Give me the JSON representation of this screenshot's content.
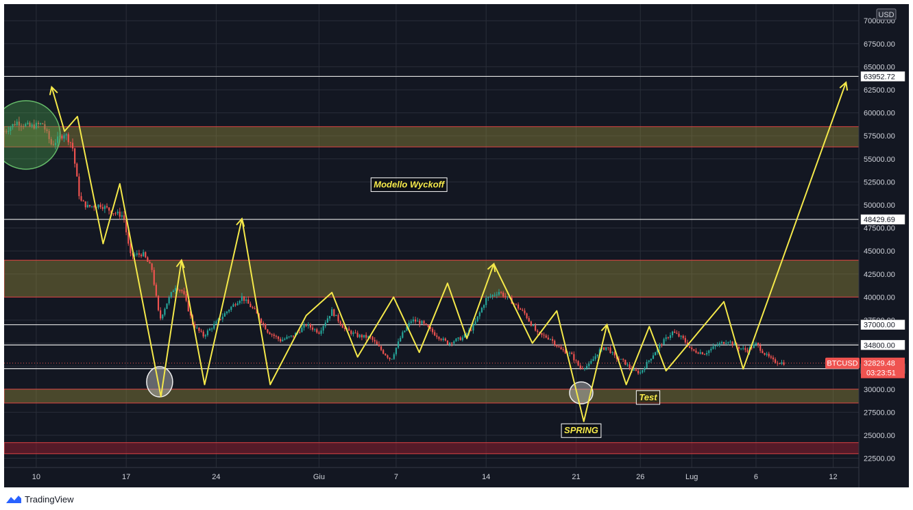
{
  "chart_data": {
    "type": "candlestick",
    "symbol": "BTCUSD",
    "currency": "USD",
    "ylim": [
      21500,
      71800
    ],
    "y_ticks": [
      "22500.00",
      "25000.00",
      "27500.00",
      "30000.00",
      "32500.00",
      "35000.00",
      "37500.00",
      "40000.00",
      "42500.00",
      "45000.00",
      "47500.00",
      "50000.00",
      "52500.00",
      "55000.00",
      "57500.00",
      "60000.00",
      "62500.00",
      "65000.00",
      "67500.00",
      "70000.00"
    ],
    "x_ticks": [
      {
        "label": "10",
        "day": 10
      },
      {
        "label": "17",
        "day": 17
      },
      {
        "label": "24",
        "day": 24
      },
      {
        "label": "Giu",
        "day": 32
      },
      {
        "label": "7",
        "day": 38
      },
      {
        "label": "14",
        "day": 45
      },
      {
        "label": "21",
        "day": 52
      },
      {
        "label": "26",
        "day": 57
      },
      {
        "label": "Lug",
        "day": 61
      },
      {
        "label": "6",
        "day": 66
      },
      {
        "label": "12",
        "day": 72
      }
    ],
    "x_range": [
      7.5,
      74.0
    ],
    "last_price": "32829.48",
    "countdown": "03:23:51",
    "price_levels": [
      "63952.72",
      "48429.69",
      "37000.00",
      "34800.00",
      "32233.19"
    ],
    "zones": [
      {
        "from": 56300,
        "to": 58500,
        "kind": "olive"
      },
      {
        "from": 40000,
        "to": 44000,
        "kind": "olive"
      },
      {
        "from": 28500,
        "to": 30000,
        "kind": "olive"
      },
      {
        "from": 23000,
        "to": 24200,
        "kind": "red"
      }
    ],
    "wyckoff_path": [
      [
        11.2,
        62800
      ],
      [
        12.2,
        58000
      ],
      [
        13.2,
        59600
      ],
      [
        15.2,
        45800
      ],
      [
        16.5,
        52300
      ],
      [
        19.7,
        29200
      ],
      [
        21.3,
        44000
      ],
      [
        23.1,
        30500
      ],
      [
        26.0,
        48500
      ],
      [
        28.2,
        30500
      ],
      [
        31.0,
        38000
      ],
      [
        33.0,
        40500
      ],
      [
        35.0,
        33500
      ],
      [
        37.8,
        40000
      ],
      [
        39.8,
        34000
      ],
      [
        42.0,
        41500
      ],
      [
        43.5,
        35500
      ],
      [
        45.6,
        43600
      ],
      [
        48.6,
        35000
      ],
      [
        50.5,
        38500
      ],
      [
        52.6,
        26500
      ],
      [
        54.4,
        37000
      ],
      [
        55.9,
        30500
      ],
      [
        57.7,
        36800
      ],
      [
        59.0,
        32000
      ],
      [
        63.5,
        39500
      ],
      [
        65.0,
        32200
      ],
      [
        73.0,
        63300
      ]
    ],
    "wyckoff_arrowheads": [
      [
        11.2,
        62800
      ],
      [
        21.3,
        44000
      ],
      [
        26.0,
        48500
      ],
      [
        45.6,
        43600
      ],
      [
        54.4,
        37000
      ],
      [
        73.0,
        63300
      ]
    ],
    "circles": [
      {
        "day": 9.2,
        "price": 57600,
        "kind": "green"
      },
      {
        "day": 19.6,
        "price": 30800,
        "kind": "white"
      },
      {
        "day": 52.4,
        "price": 29600,
        "kind": "white"
      }
    ],
    "annotations": [
      {
        "text": "Modello Wyckoff",
        "day": 39.0,
        "price": 52200
      },
      {
        "text": "SPRING",
        "day": 52.4,
        "price": 25500
      },
      {
        "text": "Test",
        "day": 57.6,
        "price": 29100
      }
    ],
    "price_path": [
      [
        7.5,
        58000
      ],
      [
        8.5,
        59000
      ],
      [
        9.5,
        58500
      ],
      [
        10.5,
        58800
      ],
      [
        11.2,
        56500
      ],
      [
        12.2,
        57800
      ],
      [
        12.8,
        56500
      ],
      [
        13.4,
        50500
      ],
      [
        14.0,
        49800
      ],
      [
        15.0,
        50000
      ],
      [
        16.0,
        49200
      ],
      [
        16.8,
        48800
      ],
      [
        17.3,
        44500
      ],
      [
        18.3,
        44700
      ],
      [
        19.0,
        43000
      ],
      [
        19.6,
        37500
      ],
      [
        20.2,
        39500
      ],
      [
        20.8,
        41200
      ],
      [
        21.4,
        40600
      ],
      [
        22.2,
        37000
      ],
      [
        23.0,
        35800
      ],
      [
        24.0,
        37200
      ],
      [
        25.0,
        38700
      ],
      [
        26.0,
        40000
      ],
      [
        27.0,
        38500
      ],
      [
        28.0,
        36300
      ],
      [
        29.0,
        35300
      ],
      [
        30.0,
        35800
      ],
      [
        31.0,
        37000
      ],
      [
        32.0,
        36200
      ],
      [
        33.0,
        38500
      ],
      [
        34.0,
        36500
      ],
      [
        35.0,
        35800
      ],
      [
        36.0,
        35600
      ],
      [
        37.0,
        34000
      ],
      [
        37.6,
        33200
      ],
      [
        38.4,
        35800
      ],
      [
        39.2,
        37500
      ],
      [
        40.0,
        37200
      ],
      [
        41.0,
        36000
      ],
      [
        42.0,
        35000
      ],
      [
        43.2,
        35600
      ],
      [
        44.0,
        36800
      ],
      [
        45.0,
        39800
      ],
      [
        46.0,
        40600
      ],
      [
        47.0,
        39500
      ],
      [
        48.0,
        38200
      ],
      [
        49.0,
        36000
      ],
      [
        50.0,
        35500
      ],
      [
        50.8,
        34300
      ],
      [
        51.6,
        33800
      ],
      [
        52.3,
        32300
      ],
      [
        53.0,
        32600
      ],
      [
        53.8,
        34200
      ],
      [
        54.4,
        34600
      ],
      [
        55.0,
        33500
      ],
      [
        55.7,
        33000
      ],
      [
        56.4,
        32000
      ],
      [
        57.0,
        31800
      ],
      [
        57.8,
        33400
      ],
      [
        58.6,
        34900
      ],
      [
        59.5,
        36200
      ],
      [
        60.3,
        35500
      ],
      [
        61.0,
        34200
      ],
      [
        62.0,
        33900
      ],
      [
        63.0,
        34800
      ],
      [
        63.8,
        35300
      ],
      [
        64.5,
        34600
      ],
      [
        65.3,
        34200
      ],
      [
        66.0,
        34900
      ],
      [
        66.7,
        33800
      ],
      [
        67.4,
        33000
      ],
      [
        68.2,
        32829
      ]
    ]
  },
  "branding": {
    "label": "TradingView"
  }
}
